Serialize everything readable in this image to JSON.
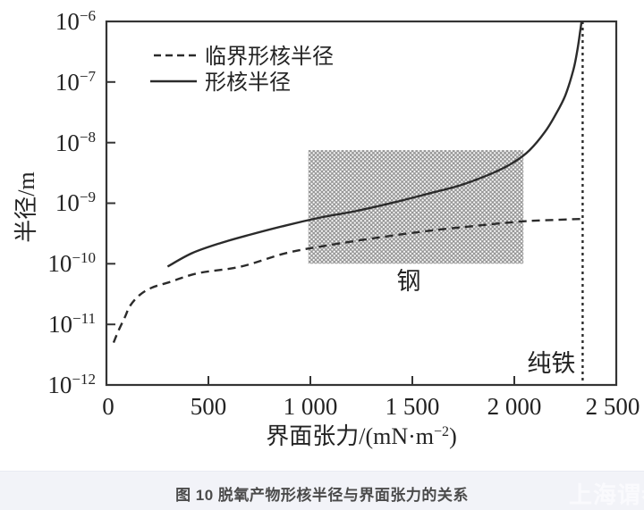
{
  "chart_data": {
    "type": "line",
    "title": "",
    "xlabel_prefix": "界面张力/(mN·m",
    "xlabel_sup": "−2",
    "xlabel_suffix": ")",
    "ylabel": "半径/m",
    "xlim": [
      0,
      2500
    ],
    "ylim": [
      1e-12,
      1e-06
    ],
    "y_scale": "log",
    "grid": false,
    "legend_position": "upper-left-inside",
    "x_tick_labels": [
      "0",
      "500",
      "1 000",
      "1 500",
      "2 000",
      "2 500"
    ],
    "x_tick_values": [
      0,
      500,
      1000,
      1500,
      2000,
      2500
    ],
    "y_ticks": [
      {
        "b": "10",
        "e": "−6"
      },
      {
        "b": "10",
        "e": "−7"
      },
      {
        "b": "10",
        "e": "−8"
      },
      {
        "b": "10",
        "e": "−9"
      },
      {
        "b": "10",
        "e": "−10"
      },
      {
        "b": "10",
        "e": "−11"
      },
      {
        "b": "10",
        "e": "−12"
      }
    ],
    "series": [
      {
        "name": "临界形核半径",
        "style": "dashed",
        "x": [
          35,
          60,
          90,
          115,
          160,
          220,
          310,
          450,
          660,
          880,
          1080,
          1330,
          1580,
          1800,
          2035,
          2200,
          2330
        ],
        "y": [
          5e-12,
          8e-12,
          1.3e-11,
          2e-11,
          3e-11,
          4e-11,
          5e-11,
          7e-11,
          9e-11,
          1.5e-10,
          2e-10,
          2.7e-10,
          3.5e-10,
          4.2e-10,
          5e-10,
          5.3e-10,
          5.5e-10
        ]
      },
      {
        "name": "形核半径",
        "style": "solid",
        "x": [
          300,
          420,
          560,
          700,
          880,
          1050,
          1230,
          1420,
          1600,
          1740,
          1900,
          2000,
          2075,
          2150,
          2200,
          2250,
          2290,
          2310,
          2322,
          2330
        ],
        "y": [
          9e-11,
          1.5e-10,
          2.2e-10,
          3e-10,
          4.3e-10,
          5.8e-10,
          7.5e-10,
          1.05e-09,
          1.5e-09,
          2e-09,
          3.2e-09,
          4.8e-09,
          7.5e-09,
          1.5e-08,
          2.8e-08,
          6e-08,
          1.6e-07,
          3.5e-07,
          6.5e-07,
          1e-06
        ]
      }
    ],
    "annotations": {
      "steel_region": {
        "label": "钢",
        "x_range": [
          990,
          2045
        ],
        "y_range": [
          1e-10,
          7.5e-09
        ],
        "fill": "hatched-gray-dots"
      },
      "pure_iron_line": {
        "label": "纯铁",
        "x": 2335,
        "style": "dotted-vertical"
      }
    }
  },
  "legend": {
    "items": [
      {
        "label": "临界形核半径",
        "line": "dashed"
      },
      {
        "label": "形核半径",
        "line": "solid"
      }
    ]
  },
  "caption": {
    "text": "图 10 脱氧产物形核半径与界面张力的关系"
  },
  "watermark": {
    "text": "上海谓参"
  },
  "colors": {
    "line": "#2b2b2b",
    "hatch_gray": "#969696",
    "caption_bg": "#f2f3f8",
    "caption_text": "#4b4b4b"
  }
}
